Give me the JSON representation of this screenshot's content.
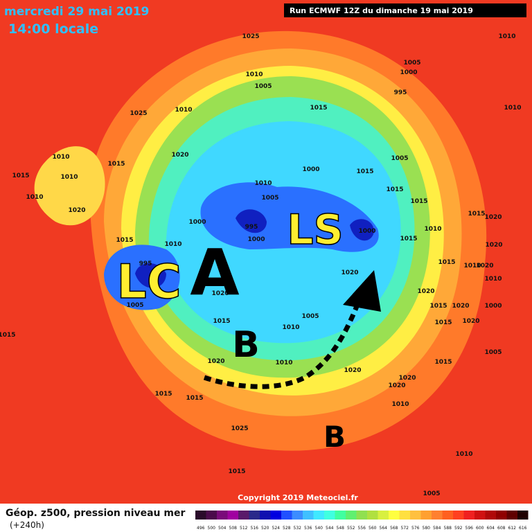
{
  "header": {
    "date": "mercredi 29 mai 2019",
    "time": "14:00 locale",
    "run": "Run ECMWF 12Z du dimanche 19 mai 2019"
  },
  "map": {
    "systems": [
      "LC",
      "A",
      "LS",
      "B",
      "B"
    ],
    "isobar_labels": [
      "1025",
      "1010",
      "1005",
      "1000",
      "1010",
      "1005",
      "995",
      "1015",
      "1025",
      "1010",
      "1010",
      "1020",
      "1010",
      "1015",
      "1010",
      "1000",
      "1015",
      "1005",
      "1015",
      "1010",
      "1015",
      "1010",
      "1005",
      "1015",
      "1020",
      "1000",
      "995",
      "1000",
      "1010",
      "1015",
      "1020",
      "1000",
      "1015",
      "1015",
      "1010",
      "1020",
      "995",
      "1015",
      "1010",
      "1020",
      "1020",
      "1010",
      "1005",
      "1020",
      "1020",
      "1015",
      "1020",
      "1000",
      "1015",
      "1005",
      "1015",
      "1020",
      "1010",
      "1015",
      "1005",
      "1020",
      "1010",
      "1020",
      "1015",
      "1020",
      "1020",
      "1015",
      "1015",
      "1010",
      "1025",
      "1010",
      "1015",
      "1005"
    ],
    "copyright": "Copyright 2019 Meteociel.fr"
  },
  "legend": {
    "title": "Géop. z500, pression niveau mer",
    "lead": "(+240h)",
    "levels": [
      496,
      500,
      504,
      508,
      512,
      516,
      520,
      524,
      528,
      532,
      536,
      540,
      544,
      548,
      552,
      556,
      560,
      564,
      568,
      572,
      576,
      580,
      584,
      588,
      592,
      596,
      600,
      604,
      608,
      612,
      616
    ],
    "colors": [
      "#2a0a2a",
      "#4b0a4b",
      "#7a0a7a",
      "#a000a0",
      "#5a1a6a",
      "#2a2a8a",
      "#1010b0",
      "#0000e0",
      "#2050ff",
      "#3c8cff",
      "#40c0ff",
      "#40e8ff",
      "#40ffe0",
      "#40ffa0",
      "#60f070",
      "#90e050",
      "#b0e040",
      "#d8f040",
      "#ffff40",
      "#ffe040",
      "#ffc040",
      "#ffa030",
      "#ff8030",
      "#ff6020",
      "#ff4020",
      "#f02020",
      "#d01010",
      "#b00808",
      "#900000",
      "#600000",
      "#200000"
    ]
  }
}
